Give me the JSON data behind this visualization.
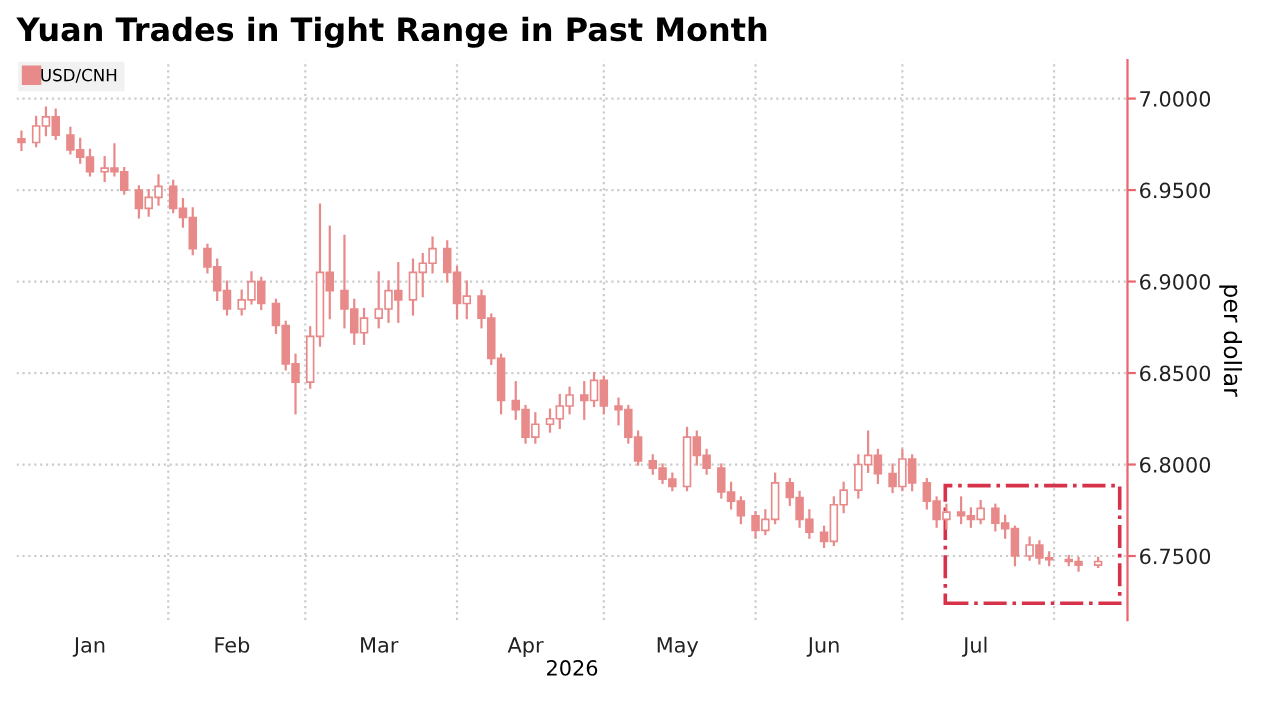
{
  "chart_data": {
    "type": "candlestick",
    "title": "Yuan Trades in Tight Range in Past Month",
    "xlabel": "2026",
    "ylabel": "per dollar",
    "series": [
      {
        "name": "USD/CNH",
        "color": "#e88a8a",
        "x": [
          "2026-01-02",
          "2026-01-05",
          "2026-01-07",
          "2026-01-09",
          "2026-01-12",
          "2026-01-14",
          "2026-01-16",
          "2026-01-19",
          "2026-01-21",
          "2026-01-23",
          "2026-01-26",
          "2026-01-28",
          "2026-01-30",
          "2026-02-02",
          "2026-02-04",
          "2026-02-06",
          "2026-02-09",
          "2026-02-11",
          "2026-02-13",
          "2026-02-16",
          "2026-02-18",
          "2026-02-20",
          "2026-02-23",
          "2026-02-25",
          "2026-02-27",
          "2026-03-02",
          "2026-03-04",
          "2026-03-06",
          "2026-03-09",
          "2026-03-11",
          "2026-03-13",
          "2026-03-16",
          "2026-03-18",
          "2026-03-20",
          "2026-03-23",
          "2026-03-25",
          "2026-03-27",
          "2026-03-30",
          "2026-04-01",
          "2026-04-03",
          "2026-04-06",
          "2026-04-08",
          "2026-04-10",
          "2026-04-13",
          "2026-04-15",
          "2026-04-17",
          "2026-04-20",
          "2026-04-22",
          "2026-04-24",
          "2026-04-27",
          "2026-04-29",
          "2026-05-01",
          "2026-05-04",
          "2026-05-06",
          "2026-05-08",
          "2026-05-11",
          "2026-05-13",
          "2026-05-15",
          "2026-05-18",
          "2026-05-20",
          "2026-05-22",
          "2026-05-25",
          "2026-05-27",
          "2026-05-29",
          "2026-06-01",
          "2026-06-03",
          "2026-06-05",
          "2026-06-08",
          "2026-06-10",
          "2026-06-12",
          "2026-06-15",
          "2026-06-17",
          "2026-06-19",
          "2026-06-22",
          "2026-06-24",
          "2026-06-26",
          "2026-06-29",
          "2026-07-01",
          "2026-07-03",
          "2026-07-06",
          "2026-07-08",
          "2026-07-10",
          "2026-07-13",
          "2026-07-15",
          "2026-07-17",
          "2026-07-20",
          "2026-07-22",
          "2026-07-24",
          "2026-07-27",
          "2026-07-29",
          "2026-07-31",
          "2026-08-04",
          "2026-08-06",
          "2026-08-10"
        ],
        "ohlc": [
          [
            6.978,
            6.982,
            6.972,
            6.976
          ],
          [
            6.976,
            6.99,
            6.974,
            6.985
          ],
          [
            6.985,
            6.995,
            6.98,
            6.99
          ],
          [
            6.99,
            6.994,
            6.978,
            6.98
          ],
          [
            6.98,
            6.984,
            6.97,
            6.972
          ],
          [
            6.972,
            6.978,
            6.965,
            6.968
          ],
          [
            6.968,
            6.972,
            6.958,
            6.96
          ],
          [
            6.96,
            6.968,
            6.955,
            6.962
          ],
          [
            6.962,
            6.975,
            6.958,
            6.96
          ],
          [
            6.96,
            6.962,
            6.948,
            6.95
          ],
          [
            6.95,
            6.952,
            6.935,
            6.94
          ],
          [
            6.94,
            6.95,
            6.936,
            6.946
          ],
          [
            6.946,
            6.958,
            6.942,
            6.952
          ],
          [
            6.952,
            6.955,
            6.938,
            6.94
          ],
          [
            6.94,
            6.945,
            6.93,
            6.935
          ],
          [
            6.935,
            6.94,
            6.915,
            6.918
          ],
          [
            6.918,
            6.92,
            6.905,
            6.908
          ],
          [
            6.908,
            6.912,
            6.89,
            6.895
          ],
          [
            6.895,
            6.9,
            6.882,
            6.885
          ],
          [
            6.885,
            6.895,
            6.882,
            6.89
          ],
          [
            6.89,
            6.905,
            6.888,
            6.9
          ],
          [
            6.9,
            6.902,
            6.885,
            6.888
          ],
          [
            6.888,
            6.89,
            6.872,
            6.876
          ],
          [
            6.876,
            6.878,
            6.852,
            6.855
          ],
          [
            6.855,
            6.86,
            6.828,
            6.845
          ],
          [
            6.845,
            6.875,
            6.842,
            6.87
          ],
          [
            6.87,
            6.942,
            6.865,
            6.905
          ],
          [
            6.905,
            6.93,
            6.88,
            6.895
          ],
          [
            6.895,
            6.925,
            6.875,
            6.885
          ],
          [
            6.885,
            6.89,
            6.866,
            6.872
          ],
          [
            6.872,
            6.885,
            6.866,
            6.88
          ],
          [
            6.88,
            6.905,
            6.875,
            6.885
          ],
          [
            6.885,
            6.9,
            6.878,
            6.895
          ],
          [
            6.895,
            6.91,
            6.878,
            6.89
          ],
          [
            6.89,
            6.912,
            6.882,
            6.905
          ],
          [
            6.905,
            6.915,
            6.892,
            6.91
          ],
          [
            6.91,
            6.924,
            6.905,
            6.918
          ],
          [
            6.918,
            6.922,
            6.9,
            6.905
          ],
          [
            6.905,
            6.908,
            6.88,
            6.888
          ],
          [
            6.888,
            6.9,
            6.88,
            6.892
          ],
          [
            6.892,
            6.895,
            6.875,
            6.88
          ],
          [
            6.88,
            6.882,
            6.855,
            6.858
          ],
          [
            6.858,
            6.86,
            6.828,
            6.835
          ],
          [
            6.835,
            6.845,
            6.825,
            6.83
          ],
          [
            6.83,
            6.832,
            6.812,
            6.815
          ],
          [
            6.815,
            6.828,
            6.812,
            6.822
          ],
          [
            6.822,
            6.83,
            6.818,
            6.825
          ],
          [
            6.825,
            6.838,
            6.82,
            6.832
          ],
          [
            6.832,
            6.842,
            6.828,
            6.838
          ],
          [
            6.838,
            6.845,
            6.825,
            6.835
          ],
          [
            6.835,
            6.85,
            6.832,
            6.846
          ],
          [
            6.846,
            6.848,
            6.828,
            6.832
          ],
          [
            6.832,
            6.836,
            6.822,
            6.83
          ],
          [
            6.83,
            6.832,
            6.812,
            6.815
          ],
          [
            6.815,
            6.818,
            6.8,
            6.802
          ],
          [
            6.802,
            6.805,
            6.795,
            6.798
          ],
          [
            6.798,
            6.8,
            6.79,
            6.792
          ],
          [
            6.792,
            6.795,
            6.786,
            6.788
          ],
          [
            6.788,
            6.82,
            6.786,
            6.815
          ],
          [
            6.815,
            6.818,
            6.8,
            6.805
          ],
          [
            6.805,
            6.808,
            6.795,
            6.798
          ],
          [
            6.798,
            6.8,
            6.782,
            6.785
          ],
          [
            6.785,
            6.79,
            6.776,
            6.78
          ],
          [
            6.78,
            6.782,
            6.768,
            6.772
          ],
          [
            6.772,
            6.774,
            6.76,
            6.764
          ],
          [
            6.764,
            6.775,
            6.762,
            6.77
          ],
          [
            6.77,
            6.795,
            6.768,
            6.79
          ],
          [
            6.79,
            6.792,
            6.778,
            6.782
          ],
          [
            6.782,
            6.785,
            6.766,
            6.77
          ],
          [
            6.77,
            6.775,
            6.76,
            6.763
          ],
          [
            6.763,
            6.766,
            6.755,
            6.758
          ],
          [
            6.758,
            6.782,
            6.756,
            6.778
          ],
          [
            6.778,
            6.79,
            6.774,
            6.786
          ],
          [
            6.786,
            6.805,
            6.782,
            6.8
          ],
          [
            6.8,
            6.818,
            6.796,
            6.805
          ],
          [
            6.805,
            6.808,
            6.79,
            6.795
          ],
          [
            6.795,
            6.8,
            6.785,
            6.788
          ],
          [
            6.788,
            6.808,
            6.786,
            6.803
          ],
          [
            6.803,
            6.805,
            6.786,
            6.79
          ],
          [
            6.79,
            6.792,
            6.776,
            6.78
          ],
          [
            6.78,
            6.782,
            6.766,
            6.77
          ],
          [
            6.77,
            6.778,
            6.765,
            6.774
          ],
          [
            6.774,
            6.782,
            6.768,
            6.772
          ],
          [
            6.772,
            6.776,
            6.766,
            6.77
          ],
          [
            6.77,
            6.78,
            6.768,
            6.776
          ],
          [
            6.776,
            6.778,
            6.764,
            6.768
          ],
          [
            6.768,
            6.772,
            6.76,
            6.765
          ],
          [
            6.765,
            6.766,
            6.745,
            6.75
          ],
          [
            6.75,
            6.76,
            6.748,
            6.756
          ],
          [
            6.756,
            6.758,
            6.746,
            6.749
          ],
          [
            6.749,
            6.752,
            6.745,
            6.748
          ],
          [
            6.748,
            6.75,
            6.745,
            6.747
          ],
          [
            6.747,
            6.749,
            6.742,
            6.745
          ],
          [
            6.745,
            6.749,
            6.744,
            6.747
          ]
        ]
      }
    ],
    "xlim": [
      "2026-01-01",
      "2026-08-16"
    ],
    "xticks": [
      {
        "value": "2026-02-01",
        "label": null
      },
      {
        "value": "2026-03-01",
        "label": null
      },
      {
        "value": "2026-04-01",
        "label": null
      },
      {
        "value": "2026-05-01",
        "label": null
      },
      {
        "value": "2026-06-01",
        "label": null
      },
      {
        "value": "2026-07-01",
        "label": null
      },
      {
        "value": "2026-08-01",
        "label": null
      },
      {
        "value": "2026-01-16",
        "label": "Jan"
      },
      {
        "value": "2026-02-14",
        "label": "Feb"
      },
      {
        "value": "2026-03-16",
        "label": "Mar"
      },
      {
        "value": "2026-04-15",
        "label": "Apr"
      },
      {
        "value": "2026-05-16",
        "label": "May"
      },
      {
        "value": "2026-06-15",
        "label": "Jun"
      },
      {
        "value": "2026-07-16",
        "label": "Jul"
      }
    ],
    "ylim": [
      6.715,
      7.021
    ],
    "yticks": [
      {
        "value": 6.75,
        "label": "6.7500"
      },
      {
        "value": 6.8,
        "label": "6.8000"
      },
      {
        "value": 6.85,
        "label": "6.8500"
      },
      {
        "value": 6.9,
        "label": "6.9000"
      },
      {
        "value": 6.95,
        "label": "6.9500"
      },
      {
        "value": 7.0,
        "label": "7.0000"
      }
    ],
    "grid": true,
    "legend": "top left"
  }
}
